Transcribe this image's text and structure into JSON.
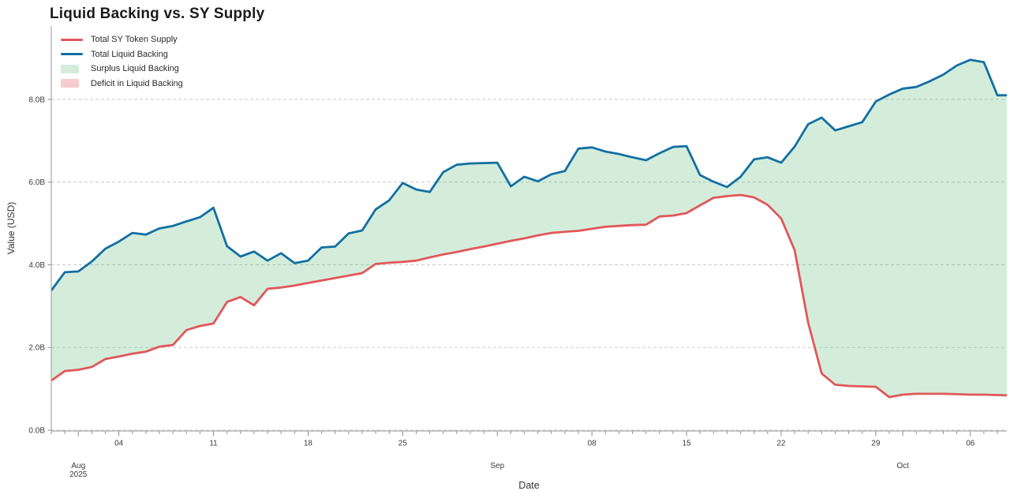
{
  "chart_data": {
    "type": "line",
    "title": "Liquid Backing vs. SY Supply",
    "xlabel": "Date",
    "ylabel": "Value (USD)",
    "start_date": "2025-07-30",
    "interval": "daily",
    "grid": true,
    "legend_position": "top-left",
    "x_axis": {
      "num_days_visible": 70.7,
      "minor_tick_every_days": 1,
      "day_ticks": [
        {
          "label": "04",
          "i": 5
        },
        {
          "label": "11",
          "i": 12
        },
        {
          "label": "18",
          "i": 19
        },
        {
          "label": "25",
          "i": 26
        },
        {
          "label": "08",
          "i": 40
        },
        {
          "label": "15",
          "i": 47
        },
        {
          "label": "22",
          "i": 54
        },
        {
          "label": "29",
          "i": 61
        },
        {
          "label": "06",
          "i": 68
        }
      ],
      "month_ticks": [
        {
          "label": "Aug",
          "sublabel": "2025",
          "i": 2
        },
        {
          "label": "Sep",
          "i": 33
        },
        {
          "label": "Oct",
          "i": 63
        }
      ]
    },
    "y_axis": {
      "ticks": [
        {
          "label": "0.0B",
          "value": 0
        },
        {
          "label": "2.0B",
          "value": 2
        },
        {
          "label": "4.0B",
          "value": 4
        },
        {
          "label": "6.0B",
          "value": 6
        },
        {
          "label": "8.0B",
          "value": 8
        }
      ],
      "unit": "billions USD",
      "top_value": 9.78
    },
    "series": [
      {
        "name": "Total SY Token Supply",
        "color": "#e15759",
        "values": [
          1.2,
          1.43,
          1.46,
          1.53,
          1.72,
          1.78,
          1.85,
          1.9,
          2.02,
          2.06,
          2.42,
          2.52,
          2.58,
          3.1,
          3.22,
          3.02,
          3.42,
          3.45,
          3.5,
          3.56,
          3.62,
          3.68,
          3.74,
          3.8,
          4.02,
          4.05,
          4.07,
          4.1,
          4.18,
          4.25,
          4.31,
          4.38,
          4.44,
          4.51,
          4.58,
          4.64,
          4.71,
          4.77,
          4.8,
          4.82,
          4.87,
          4.92,
          4.94,
          4.96,
          4.97,
          5.17,
          5.19,
          5.25,
          5.44,
          5.62,
          5.66,
          5.69,
          5.63,
          5.45,
          5.12,
          4.35,
          2.6,
          1.37,
          1.1,
          1.07,
          1.06,
          1.05,
          0.8,
          0.86,
          0.88,
          0.88,
          0.88,
          0.87,
          0.86,
          0.86,
          0.85,
          0.84
        ]
      },
      {
        "name": "Total Liquid Backing",
        "color": "#136fa3",
        "values": [
          3.38,
          3.82,
          3.84,
          4.08,
          4.39,
          4.56,
          4.77,
          4.73,
          4.88,
          4.94,
          5.05,
          5.15,
          5.38,
          4.45,
          4.2,
          4.32,
          4.1,
          4.28,
          4.04,
          4.1,
          4.42,
          4.44,
          4.76,
          4.83,
          5.34,
          5.56,
          5.98,
          5.82,
          5.76,
          6.24,
          6.42,
          6.45,
          6.46,
          6.47,
          5.9,
          6.13,
          6.02,
          6.19,
          6.27,
          6.81,
          6.84,
          6.74,
          6.68,
          6.6,
          6.53,
          6.7,
          6.85,
          6.87,
          6.17,
          6.01,
          5.88,
          6.13,
          6.55,
          6.6,
          6.47,
          6.86,
          7.4,
          7.56,
          7.25,
          7.35,
          7.45,
          7.95,
          8.12,
          8.26,
          8.3,
          8.44,
          8.6,
          8.82,
          8.96,
          8.9,
          8.1,
          8.1
        ]
      }
    ],
    "fills": [
      {
        "name": "Surplus Liquid Backing",
        "color": "rgba(82,183,112,0.25)",
        "between": "backing_above_supply"
      },
      {
        "name": "Deficit in Liquid Backing",
        "color": "rgba(225,87,89,0.30)",
        "between": "supply_above_backing"
      }
    ],
    "legend": [
      {
        "label": "Total SY Token Supply",
        "type": "line",
        "color": "#e15759"
      },
      {
        "label": "Total Liquid Backing",
        "type": "line",
        "color": "#136fa3"
      },
      {
        "label": "Surplus Liquid Backing",
        "type": "fill",
        "color": "rgba(82,183,112,0.25)"
      },
      {
        "label": "Deficit in Liquid Backing",
        "type": "fill",
        "color": "rgba(225,87,89,0.30)"
      }
    ]
  },
  "colors": {
    "background": "#ffffff",
    "grid": "#cdcdcd",
    "spine": "#a6a6a6",
    "tick": "#8c8c8c",
    "tick_label": "#3a3a3a",
    "title": "#1b1b1b",
    "axis_title": "#333333"
  }
}
